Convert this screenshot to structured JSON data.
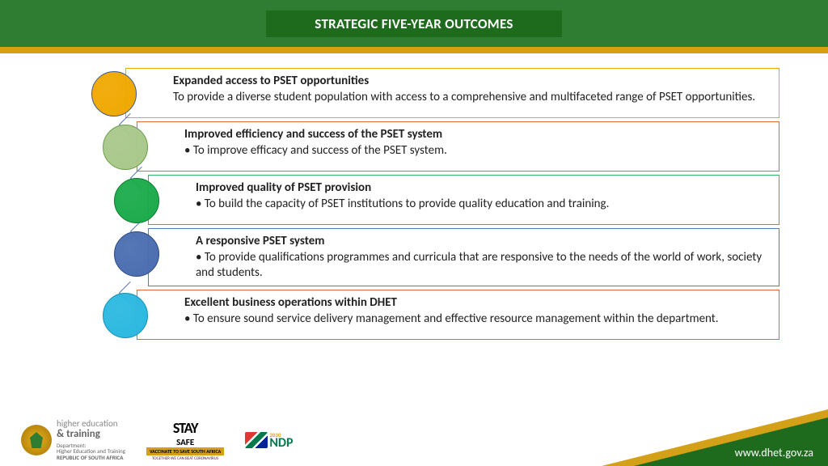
{
  "header": {
    "title": "STRATEGIC FIVE-YEAR OUTCOMES"
  },
  "items": [
    {
      "title": "Expanded access to PSET opportunities",
      "body": " To provide a diverse student population with access to a comprehensive and multifaceted range of PSET opportunities.",
      "bullet": false,
      "circle_fill": "#f0a800",
      "circle_stroke": "#3b5998",
      "box_border": "#f0a800",
      "indent": 0
    },
    {
      "title": "Improved efficiency and success of the PSET system",
      "body": "To improve efficacy and success of the PSET system.",
      "bullet": true,
      "circle_fill": "#a8c88a",
      "circle_stroke": "#6b9b4a",
      "box_border": "#e8683a",
      "indent": 14
    },
    {
      "title": "Improved quality of PSET provision",
      "body": "To build the capacity of PSET institutions to provide quality education and training.",
      "bullet": true,
      "circle_fill": "#1aaa4a",
      "circle_stroke": "#0d7a30",
      "box_border": "#2eb86a",
      "indent": 28
    },
    {
      "title": "A responsive PSET system",
      "body": "To provide qualifications programmes and curricula that are responsive to the needs of the world of work, society and students.",
      "bullet": true,
      "circle_fill": "#4a6db0",
      "circle_stroke": "#2e4a80",
      "box_border": "#5a7bb0",
      "indent": 28
    },
    {
      "title": "Excellent business operations within DHET",
      "body": "To ensure sound service delivery management and effective resource management within the department.",
      "bullet": true,
      "circle_fill": "#2ab8e0",
      "circle_stroke": "#1590b5",
      "box_border": "#e8683a",
      "indent": 14
    }
  ],
  "footer": {
    "dept_line1": "higher education",
    "dept_line2": "& training",
    "dept_line3": "Department:",
    "dept_line4": "Higher Education and Training",
    "dept_line5": "REPUBLIC OF SOUTH AFRICA",
    "stay_top": "STAY",
    "stay_safe": "SAFE",
    "stay_mid": "VACCINATE TO SAVE SOUTH AFRICA",
    "stay_bot": "TOGETHER WE CAN BEAT CORONAVIRUS",
    "ndp": "NDP",
    "ndp_year": "2030",
    "url": "www.dhet.gov.za"
  },
  "colors": {
    "header_bg": "#2e7d32",
    "header_inner": "#1e6b1e",
    "gold": "#d4a017"
  }
}
